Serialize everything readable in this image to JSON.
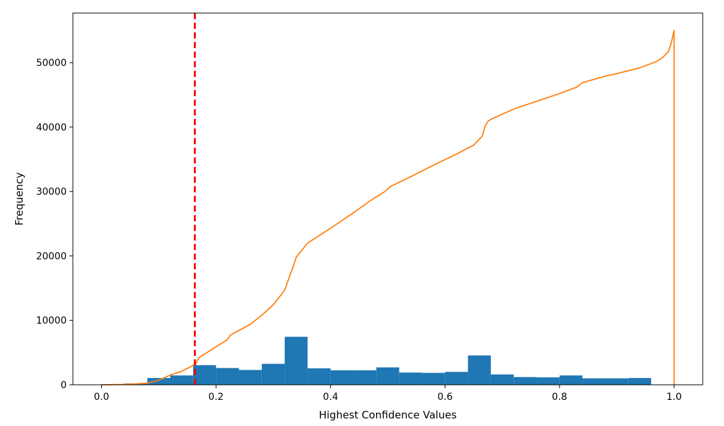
{
  "chart_data": {
    "type": "bar",
    "title": "",
    "xlabel": "Highest Confidence Values",
    "ylabel": "Frequency",
    "xlim": [
      -0.05,
      1.05
    ],
    "ylim": [
      0,
      57700
    ],
    "xticks": [
      0.0,
      0.2,
      0.4,
      0.6,
      0.8,
      1.0
    ],
    "xtick_labels": [
      "0.0",
      "0.2",
      "0.4",
      "0.6",
      "0.8",
      "1.0"
    ],
    "yticks": [
      0,
      10000,
      20000,
      30000,
      40000,
      50000
    ],
    "ytick_labels": [
      "0",
      "10000",
      "20000",
      "30000",
      "40000",
      "50000"
    ],
    "grid": false,
    "legend": "none",
    "histogram": {
      "color": "#1f77b4",
      "bin_edges": [
        0.0,
        0.04,
        0.08,
        0.12,
        0.16,
        0.2,
        0.24,
        0.28,
        0.32,
        0.36,
        0.4,
        0.44,
        0.48,
        0.52,
        0.56,
        0.6,
        0.64,
        0.68,
        0.72,
        0.76,
        0.8,
        0.84,
        0.88,
        0.92,
        0.96
      ],
      "values": [
        50,
        200,
        1050,
        1450,
        3050,
        2600,
        2300,
        3250,
        7450,
        2550,
        2250,
        2250,
        2700,
        1900,
        1850,
        2000,
        4550,
        1600,
        1200,
        1150,
        1450,
        1000,
        1000,
        1050
      ]
    },
    "cumulative": {
      "color": "#ff7f0e",
      "x": [
        0.0,
        0.04,
        0.06,
        0.08,
        0.1,
        0.12,
        0.14,
        0.16,
        0.165,
        0.17,
        0.2,
        0.22,
        0.225,
        0.26,
        0.28,
        0.3,
        0.32,
        0.33,
        0.335,
        0.34,
        0.36,
        0.4,
        0.44,
        0.47,
        0.495,
        0.5,
        0.505,
        0.54,
        0.58,
        0.62,
        0.65,
        0.665,
        0.67,
        0.675,
        0.68,
        0.72,
        0.76,
        0.8,
        0.83,
        0.84,
        0.88,
        0.9,
        0.94,
        0.97,
        0.98,
        0.99,
        0.995,
        1.0,
        1.0
      ],
      "y": [
        0,
        50,
        150,
        250,
        700,
        1500,
        2100,
        3000,
        3300,
        4200,
        5900,
        7000,
        7700,
        9400,
        10800,
        12400,
        14700,
        17200,
        18400,
        19800,
        22000,
        24300,
        26700,
        28600,
        30000,
        30400,
        30800,
        32300,
        34100,
        35800,
        37200,
        38600,
        40200,
        40900,
        41200,
        42800,
        44000,
        45200,
        46200,
        46900,
        47900,
        48300,
        49200,
        50200,
        50800,
        51700,
        53000,
        55000,
        0
      ]
    },
    "threshold": {
      "x": 0.163,
      "color": "#ff0000",
      "style": "dashed"
    }
  }
}
